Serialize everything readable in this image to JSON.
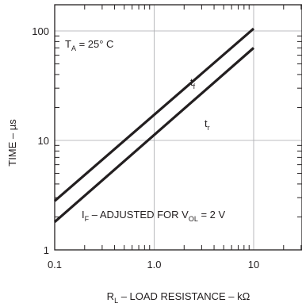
{
  "chart_data": {
    "type": "line",
    "xscale": "log",
    "yscale": "log",
    "xlim": [
      0.1,
      30
    ],
    "ylim": [
      1,
      300
    ],
    "grid": true,
    "x_ticks": [
      {
        "value": 0.1,
        "label": "0.1"
      },
      {
        "value": 1,
        "label": "1.0"
      },
      {
        "value": 10,
        "label": "10"
      }
    ],
    "y_ticks": [
      {
        "value": 1,
        "label": "1"
      },
      {
        "value": 10,
        "label": "10"
      },
      {
        "value": 100,
        "label": "100"
      }
    ],
    "xlabel": {
      "pre": "R",
      "sub": "L",
      "post": " – LOAD RESISTANCE – kΩ"
    },
    "ylabel": "TIME – µs",
    "series": [
      {
        "name": {
          "main": "t",
          "sub": "f"
        },
        "x": [
          0.1,
          10
        ],
        "y": [
          2.8,
          105
        ]
      },
      {
        "name": {
          "main": "t",
          "sub": "r"
        },
        "x": [
          0.1,
          10
        ],
        "y": [
          1.8,
          70
        ]
      }
    ],
    "annotations": {
      "temperature": {
        "pre": "T",
        "sub": "A",
        "post": " = 25° C"
      },
      "condition": {
        "pre1": "I",
        "sub1": "F",
        "mid": " – ADJUSTED FOR V",
        "sub2": "OL",
        "post": " = 2 V"
      }
    }
  }
}
